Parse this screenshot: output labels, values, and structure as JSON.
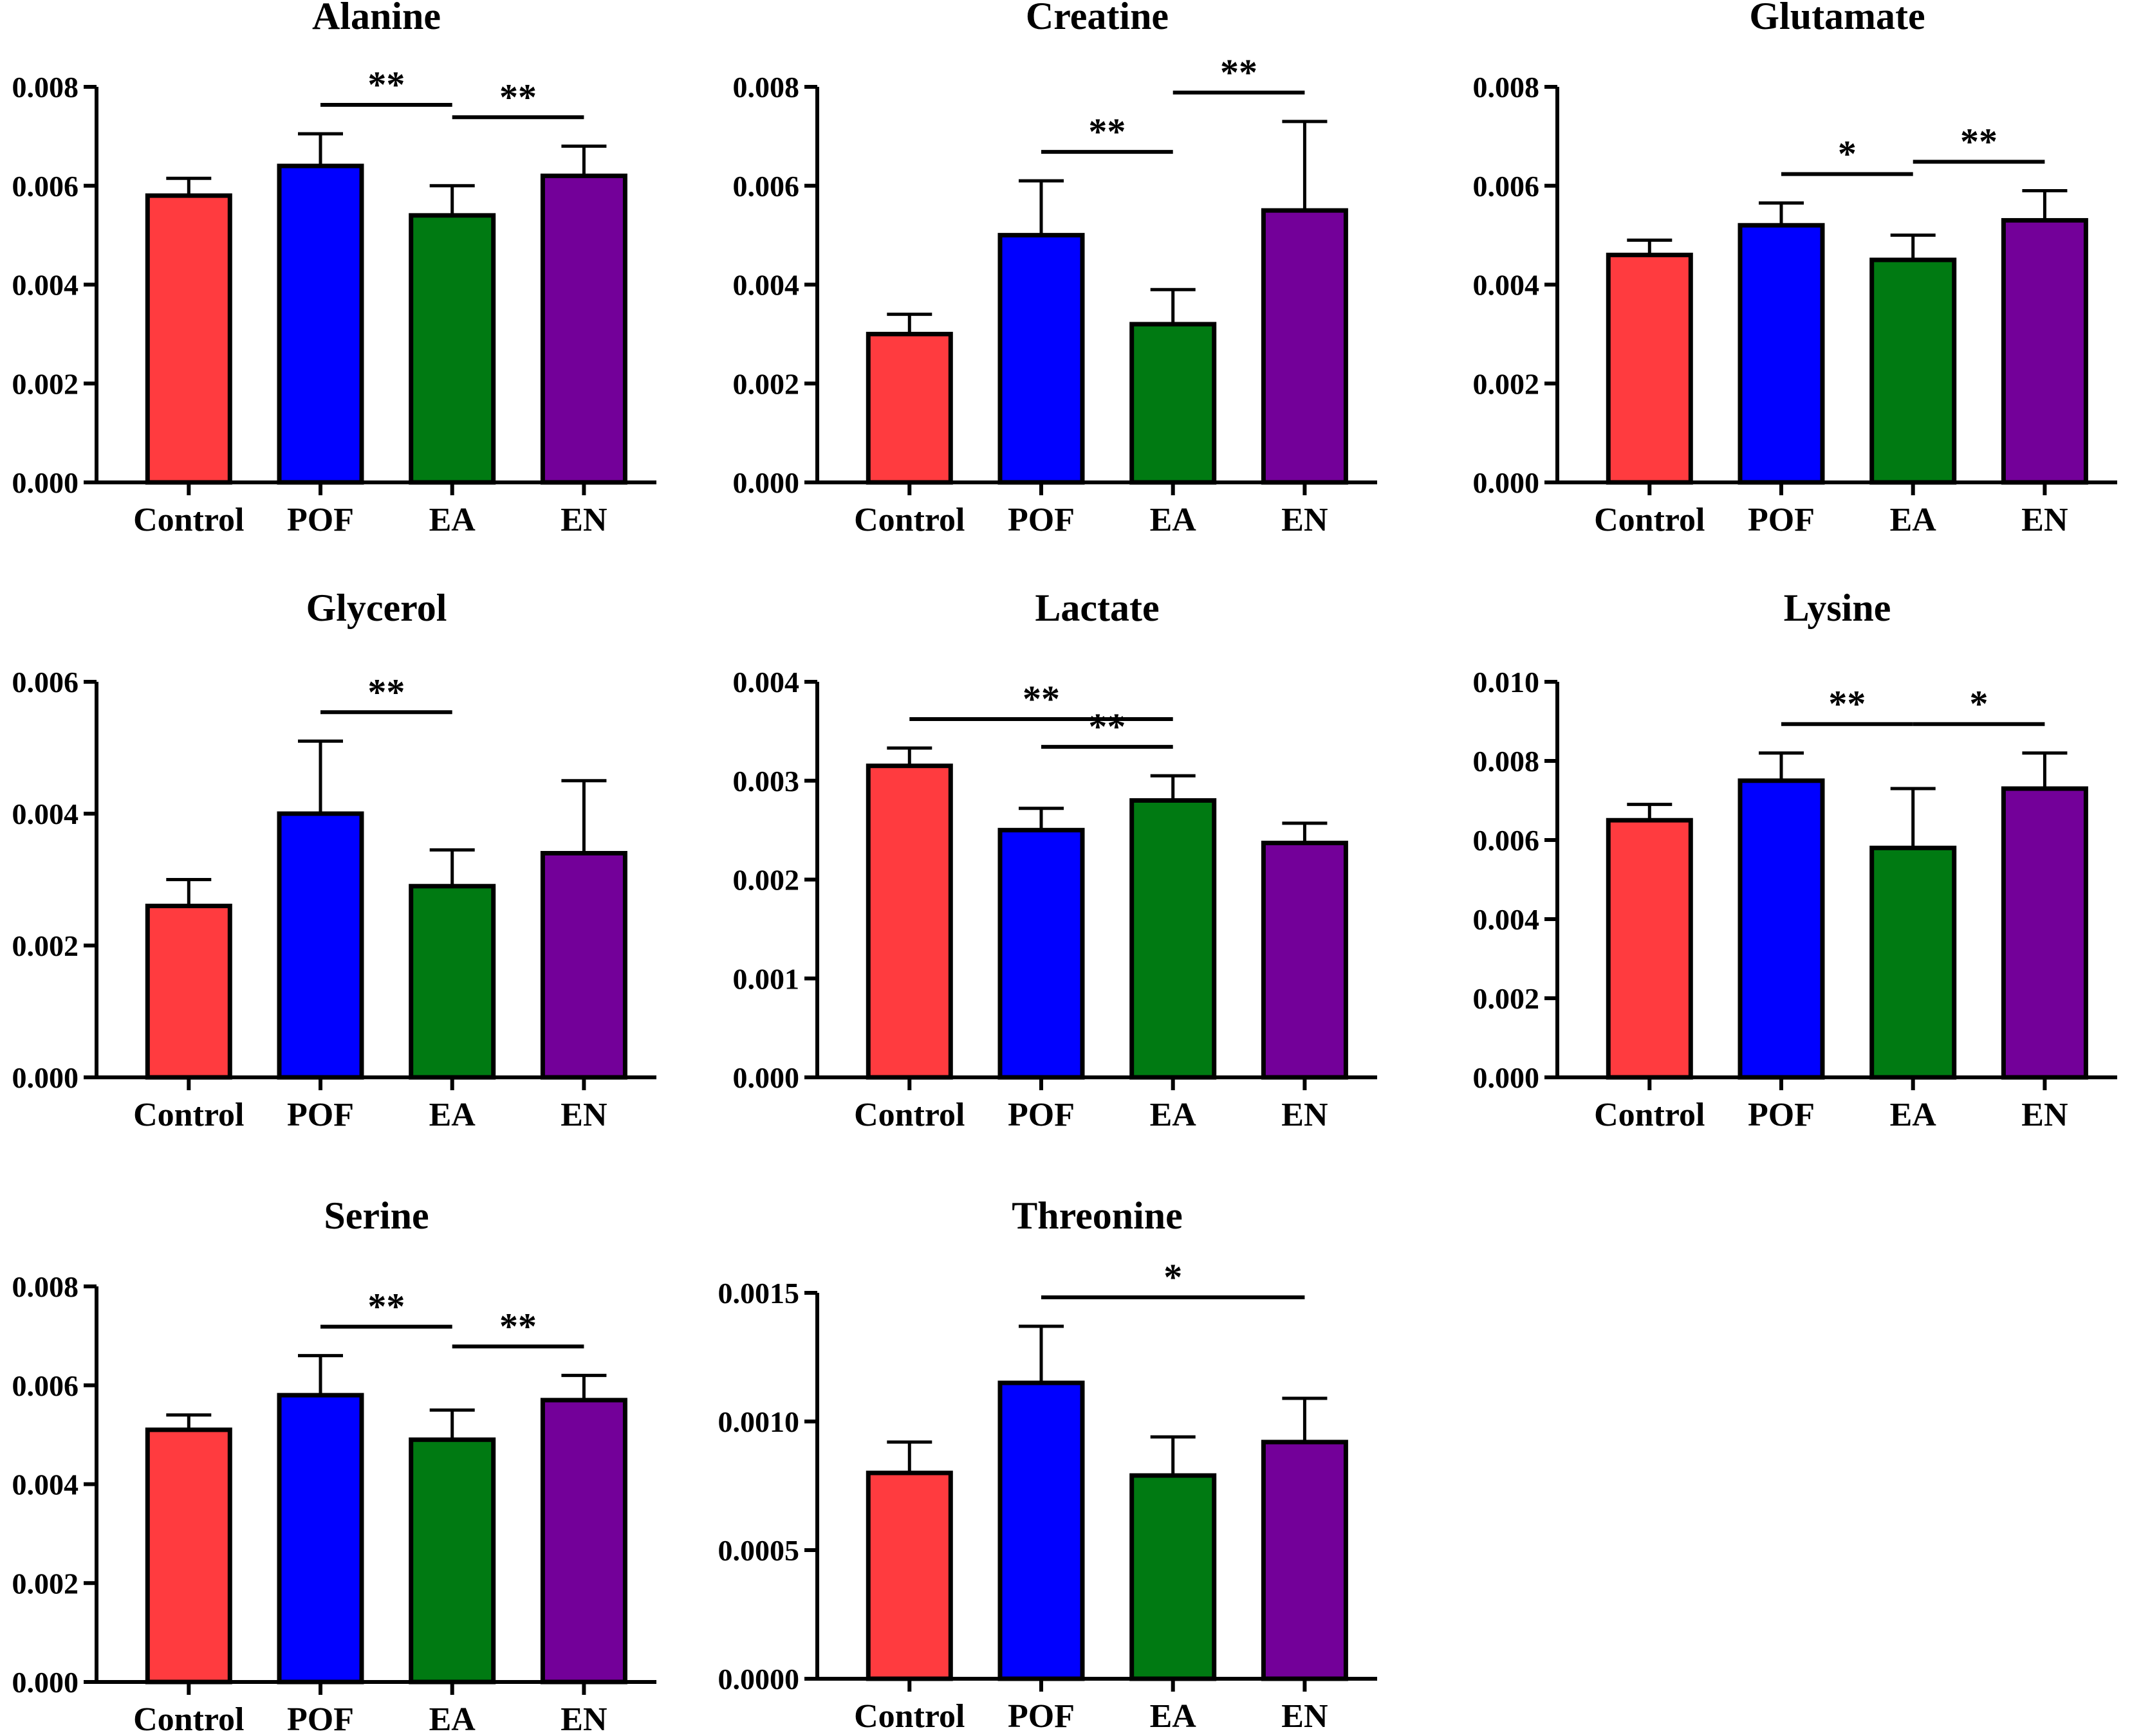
{
  "chart_data": [
    {
      "type": "bar",
      "title": "Alanine",
      "categories": [
        "Control",
        "POF",
        "EA",
        "EN"
      ],
      "values": [
        0.0058,
        0.0064,
        0.0054,
        0.0062
      ],
      "errors": [
        0.00035,
        0.00065,
        0.0006,
        0.0006
      ],
      "yticks": [
        "0.000",
        "0.002",
        "0.004",
        "0.006",
        "0.008"
      ],
      "ylim": [
        0,
        0.008
      ],
      "significance": [
        {
          "from": 1,
          "to": 2,
          "label": "**"
        },
        {
          "from": 2,
          "to": 3,
          "label": "**"
        }
      ]
    },
    {
      "type": "bar",
      "title": "Creatine",
      "categories": [
        "Control",
        "POF",
        "EA",
        "EN"
      ],
      "values": [
        0.003,
        0.005,
        0.0032,
        0.0055
      ],
      "errors": [
        0.0004,
        0.0011,
        0.0007,
        0.0018
      ],
      "yticks": [
        "0.000",
        "0.002",
        "0.004",
        "0.006",
        "0.008"
      ],
      "ylim": [
        0,
        0.008
      ],
      "significance": [
        {
          "from": 1,
          "to": 2,
          "label": "**"
        },
        {
          "from": 2,
          "to": 3,
          "label": "**"
        }
      ]
    },
    {
      "type": "bar",
      "title": "Glutamate",
      "categories": [
        "Control",
        "POF",
        "EA",
        "EN"
      ],
      "values": [
        0.0046,
        0.0052,
        0.0045,
        0.0053
      ],
      "errors": [
        0.0003,
        0.00045,
        0.0005,
        0.0006
      ],
      "yticks": [
        "0.000",
        "0.002",
        "0.004",
        "0.006",
        "0.008"
      ],
      "ylim": [
        0,
        0.008
      ],
      "significance": [
        {
          "from": 1,
          "to": 2,
          "label": "*"
        },
        {
          "from": 2,
          "to": 3,
          "label": "**"
        }
      ]
    },
    {
      "type": "bar",
      "title": "Glycerol",
      "categories": [
        "Control",
        "POF",
        "EA",
        "EN"
      ],
      "values": [
        0.0026,
        0.004,
        0.0029,
        0.0034
      ],
      "errors": [
        0.0004,
        0.0011,
        0.00055,
        0.0011
      ],
      "yticks": [
        "0.000",
        "0.002",
        "0.004",
        "0.006"
      ],
      "ylim": [
        0,
        0.006
      ],
      "significance": [
        {
          "from": 1,
          "to": 2,
          "label": "**"
        }
      ]
    },
    {
      "type": "bar",
      "title": "Lactate",
      "categories": [
        "Control",
        "POF",
        "EA",
        "EN"
      ],
      "values": [
        0.00315,
        0.0025,
        0.0028,
        0.00237
      ],
      "errors": [
        0.00018,
        0.00022,
        0.00025,
        0.0002
      ],
      "yticks": [
        "0.000",
        "0.001",
        "0.002",
        "0.003",
        "0.004"
      ],
      "ylim": [
        0,
        0.004
      ],
      "significance": [
        {
          "from": 0,
          "to": 2,
          "label": "**"
        },
        {
          "from": 1,
          "to": 2,
          "label": "**"
        }
      ]
    },
    {
      "type": "bar",
      "title": "Lysine",
      "categories": [
        "Control",
        "POF",
        "EA",
        "EN"
      ],
      "values": [
        0.0065,
        0.0075,
        0.0058,
        0.0073
      ],
      "errors": [
        0.0004,
        0.0007,
        0.0015,
        0.0009
      ],
      "yticks": [
        "0.000",
        "0.002",
        "0.004",
        "0.006",
        "0.008",
        "0.010"
      ],
      "ylim": [
        0,
        0.01
      ],
      "significance": [
        {
          "from": 1,
          "to": 2,
          "label": "**"
        },
        {
          "from": 2,
          "to": 3,
          "label": "*"
        }
      ]
    },
    {
      "type": "bar",
      "title": "Serine",
      "categories": [
        "Control",
        "POF",
        "EA",
        "EN"
      ],
      "values": [
        0.0051,
        0.0058,
        0.0049,
        0.0057
      ],
      "errors": [
        0.0003,
        0.0008,
        0.0006,
        0.0005
      ],
      "yticks": [
        "0.000",
        "0.002",
        "0.004",
        "0.006",
        "0.008"
      ],
      "ylim": [
        0,
        0.008
      ],
      "significance": [
        {
          "from": 1,
          "to": 2,
          "label": "**"
        },
        {
          "from": 2,
          "to": 3,
          "label": "**"
        }
      ]
    },
    {
      "type": "bar",
      "title": "Threonine",
      "categories": [
        "Control",
        "POF",
        "EA",
        "EN"
      ],
      "values": [
        0.0008,
        0.00115,
        0.00079,
        0.00092
      ],
      "errors": [
        0.00012,
        0.00022,
        0.00015,
        0.00017
      ],
      "yticks": [
        "0.0000",
        "0.0005",
        "0.0010",
        "0.0015"
      ],
      "ylim": [
        0,
        0.0015
      ],
      "significance": [
        {
          "from": 1,
          "to": 3,
          "label": "*"
        }
      ]
    }
  ],
  "colors": {
    "Control": "#ff3b3f",
    "POF": "#0000ff",
    "EA": "#007a12",
    "EN": "#730099",
    "stroke": "#000000"
  }
}
